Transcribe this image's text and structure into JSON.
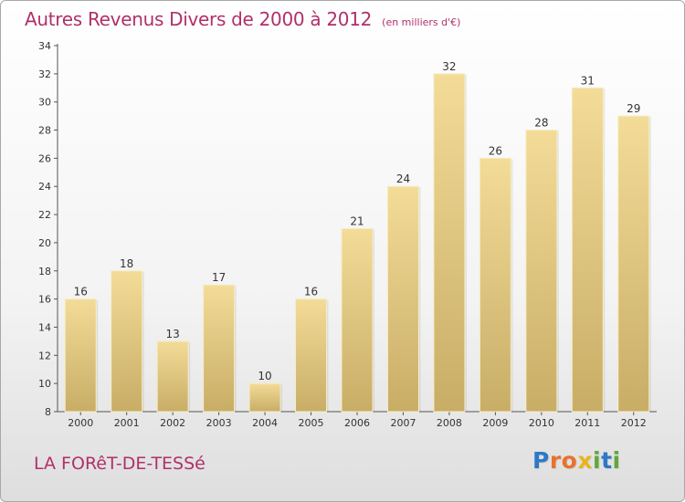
{
  "title": "Autres Revenus Divers de 2000 à 2012",
  "subtitle": "(en milliers d'€)",
  "place": "LA FORêT-DE-TESSé",
  "logo": {
    "letters": [
      {
        "ch": "P",
        "color": "#2f78c4"
      },
      {
        "ch": "r",
        "color": "#e8722e"
      },
      {
        "ch": "o",
        "color": "#e8722e"
      },
      {
        "ch": "x",
        "color": "#e8b51d"
      },
      {
        "ch": "i",
        "color": "#62a73a"
      },
      {
        "ch": "t",
        "color": "#2f78c4"
      },
      {
        "ch": "i",
        "color": "#62a73a"
      }
    ]
  },
  "colors": {
    "title": "#b0306a",
    "bar_light": "#f3dc98",
    "bar_dark": "#c8ad66",
    "axis": "#555555"
  },
  "chart_data": {
    "type": "bar",
    "categories": [
      "2000",
      "2001",
      "2002",
      "2003",
      "2004",
      "2005",
      "2006",
      "2007",
      "2008",
      "2009",
      "2010",
      "2011",
      "2012"
    ],
    "values": [
      16,
      18,
      13,
      17,
      10,
      16,
      21,
      24,
      32,
      26,
      28,
      31,
      29
    ],
    "ylim": [
      8,
      34
    ],
    "yticks": [
      8,
      10,
      12,
      14,
      16,
      18,
      20,
      22,
      24,
      26,
      28,
      30,
      32,
      34
    ],
    "xlabel": "",
    "ylabel": "",
    "grid": false,
    "data_labels": true
  }
}
